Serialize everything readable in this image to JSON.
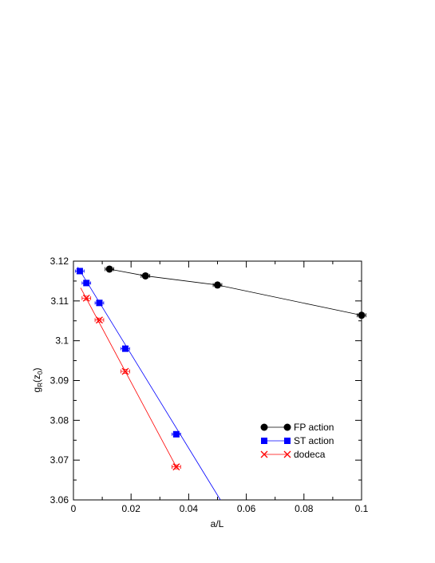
{
  "chart_data": {
    "type": "line",
    "title": "",
    "xlabel": "a/L",
    "ylabel": "g_R(z_0)",
    "ylabel_parts": {
      "base": "g",
      "sub": "R",
      "paren_open": "(z",
      "sub2": "0",
      "paren_close": ")"
    },
    "xlim": [
      0,
      0.1
    ],
    "ylim": [
      3.06,
      3.12
    ],
    "xticks": [
      0,
      0.02,
      0.04,
      0.06,
      0.08,
      0.1
    ],
    "xtick_labels": [
      "0",
      "0.02",
      "0.04",
      "0.06",
      "0.08",
      "0.1"
    ],
    "yticks": [
      3.06,
      3.07,
      3.08,
      3.09,
      3.1,
      3.11,
      3.12
    ],
    "ytick_labels": [
      "3.06",
      "3.07",
      "3.08",
      "3.09",
      "3.1",
      "3.11",
      "3.12"
    ],
    "grid": false,
    "legend_position": "lower-right",
    "series": [
      {
        "name": "FP action",
        "marker": "circle",
        "color": "#000000",
        "points": [
          {
            "x": 0.0125,
            "y": 3.118,
            "xerr": 0.0015,
            "yerr": 0.0005
          },
          {
            "x": 0.025,
            "y": 3.1163,
            "xerr": 0.0015,
            "yerr": 0.0005
          },
          {
            "x": 0.05,
            "y": 3.114,
            "xerr": 0.0015,
            "yerr": 0.0005
          },
          {
            "x": 0.1,
            "y": 3.1064,
            "xerr": 0.0015,
            "yerr": 0.0005
          }
        ],
        "fit_line": [
          [
            0.0125,
            3.118
          ],
          [
            0.025,
            3.1163
          ],
          [
            0.05,
            3.114
          ],
          [
            0.1,
            3.1064
          ]
        ]
      },
      {
        "name": "ST action",
        "marker": "square",
        "color": "#0000ff",
        "points": [
          {
            "x": 0.0022,
            "y": 3.1175,
            "xerr": 0.0015,
            "yerr": 0.0004
          },
          {
            "x": 0.0045,
            "y": 3.1145,
            "xerr": 0.0015,
            "yerr": 0.0004
          },
          {
            "x": 0.009,
            "y": 3.1095,
            "xerr": 0.0015,
            "yerr": 0.0004
          },
          {
            "x": 0.018,
            "y": 3.098,
            "xerr": 0.0015,
            "yerr": 0.0004
          },
          {
            "x": 0.0357,
            "y": 3.0765,
            "xerr": 0.0015,
            "yerr": 0.0004
          }
        ],
        "fit_line": [
          [
            0.0015,
            3.1185
          ],
          [
            0.051,
            3.06
          ]
        ]
      },
      {
        "name": "dodeca",
        "marker": "x",
        "color": "#ff0000",
        "points": [
          {
            "x": 0.0045,
            "y": 3.1107,
            "xerr": 0.0015,
            "yerr": 0.0005
          },
          {
            "x": 0.009,
            "y": 3.1052,
            "xerr": 0.0015,
            "yerr": 0.0005
          },
          {
            "x": 0.018,
            "y": 3.0923,
            "xerr": 0.0015,
            "yerr": 0.0005
          },
          {
            "x": 0.0357,
            "y": 3.0683,
            "xerr": 0.0015,
            "yerr": 0.0005
          }
        ],
        "fit_line": [
          [
            0.0025,
            3.1133
          ],
          [
            0.0357,
            3.0683
          ]
        ]
      }
    ]
  }
}
